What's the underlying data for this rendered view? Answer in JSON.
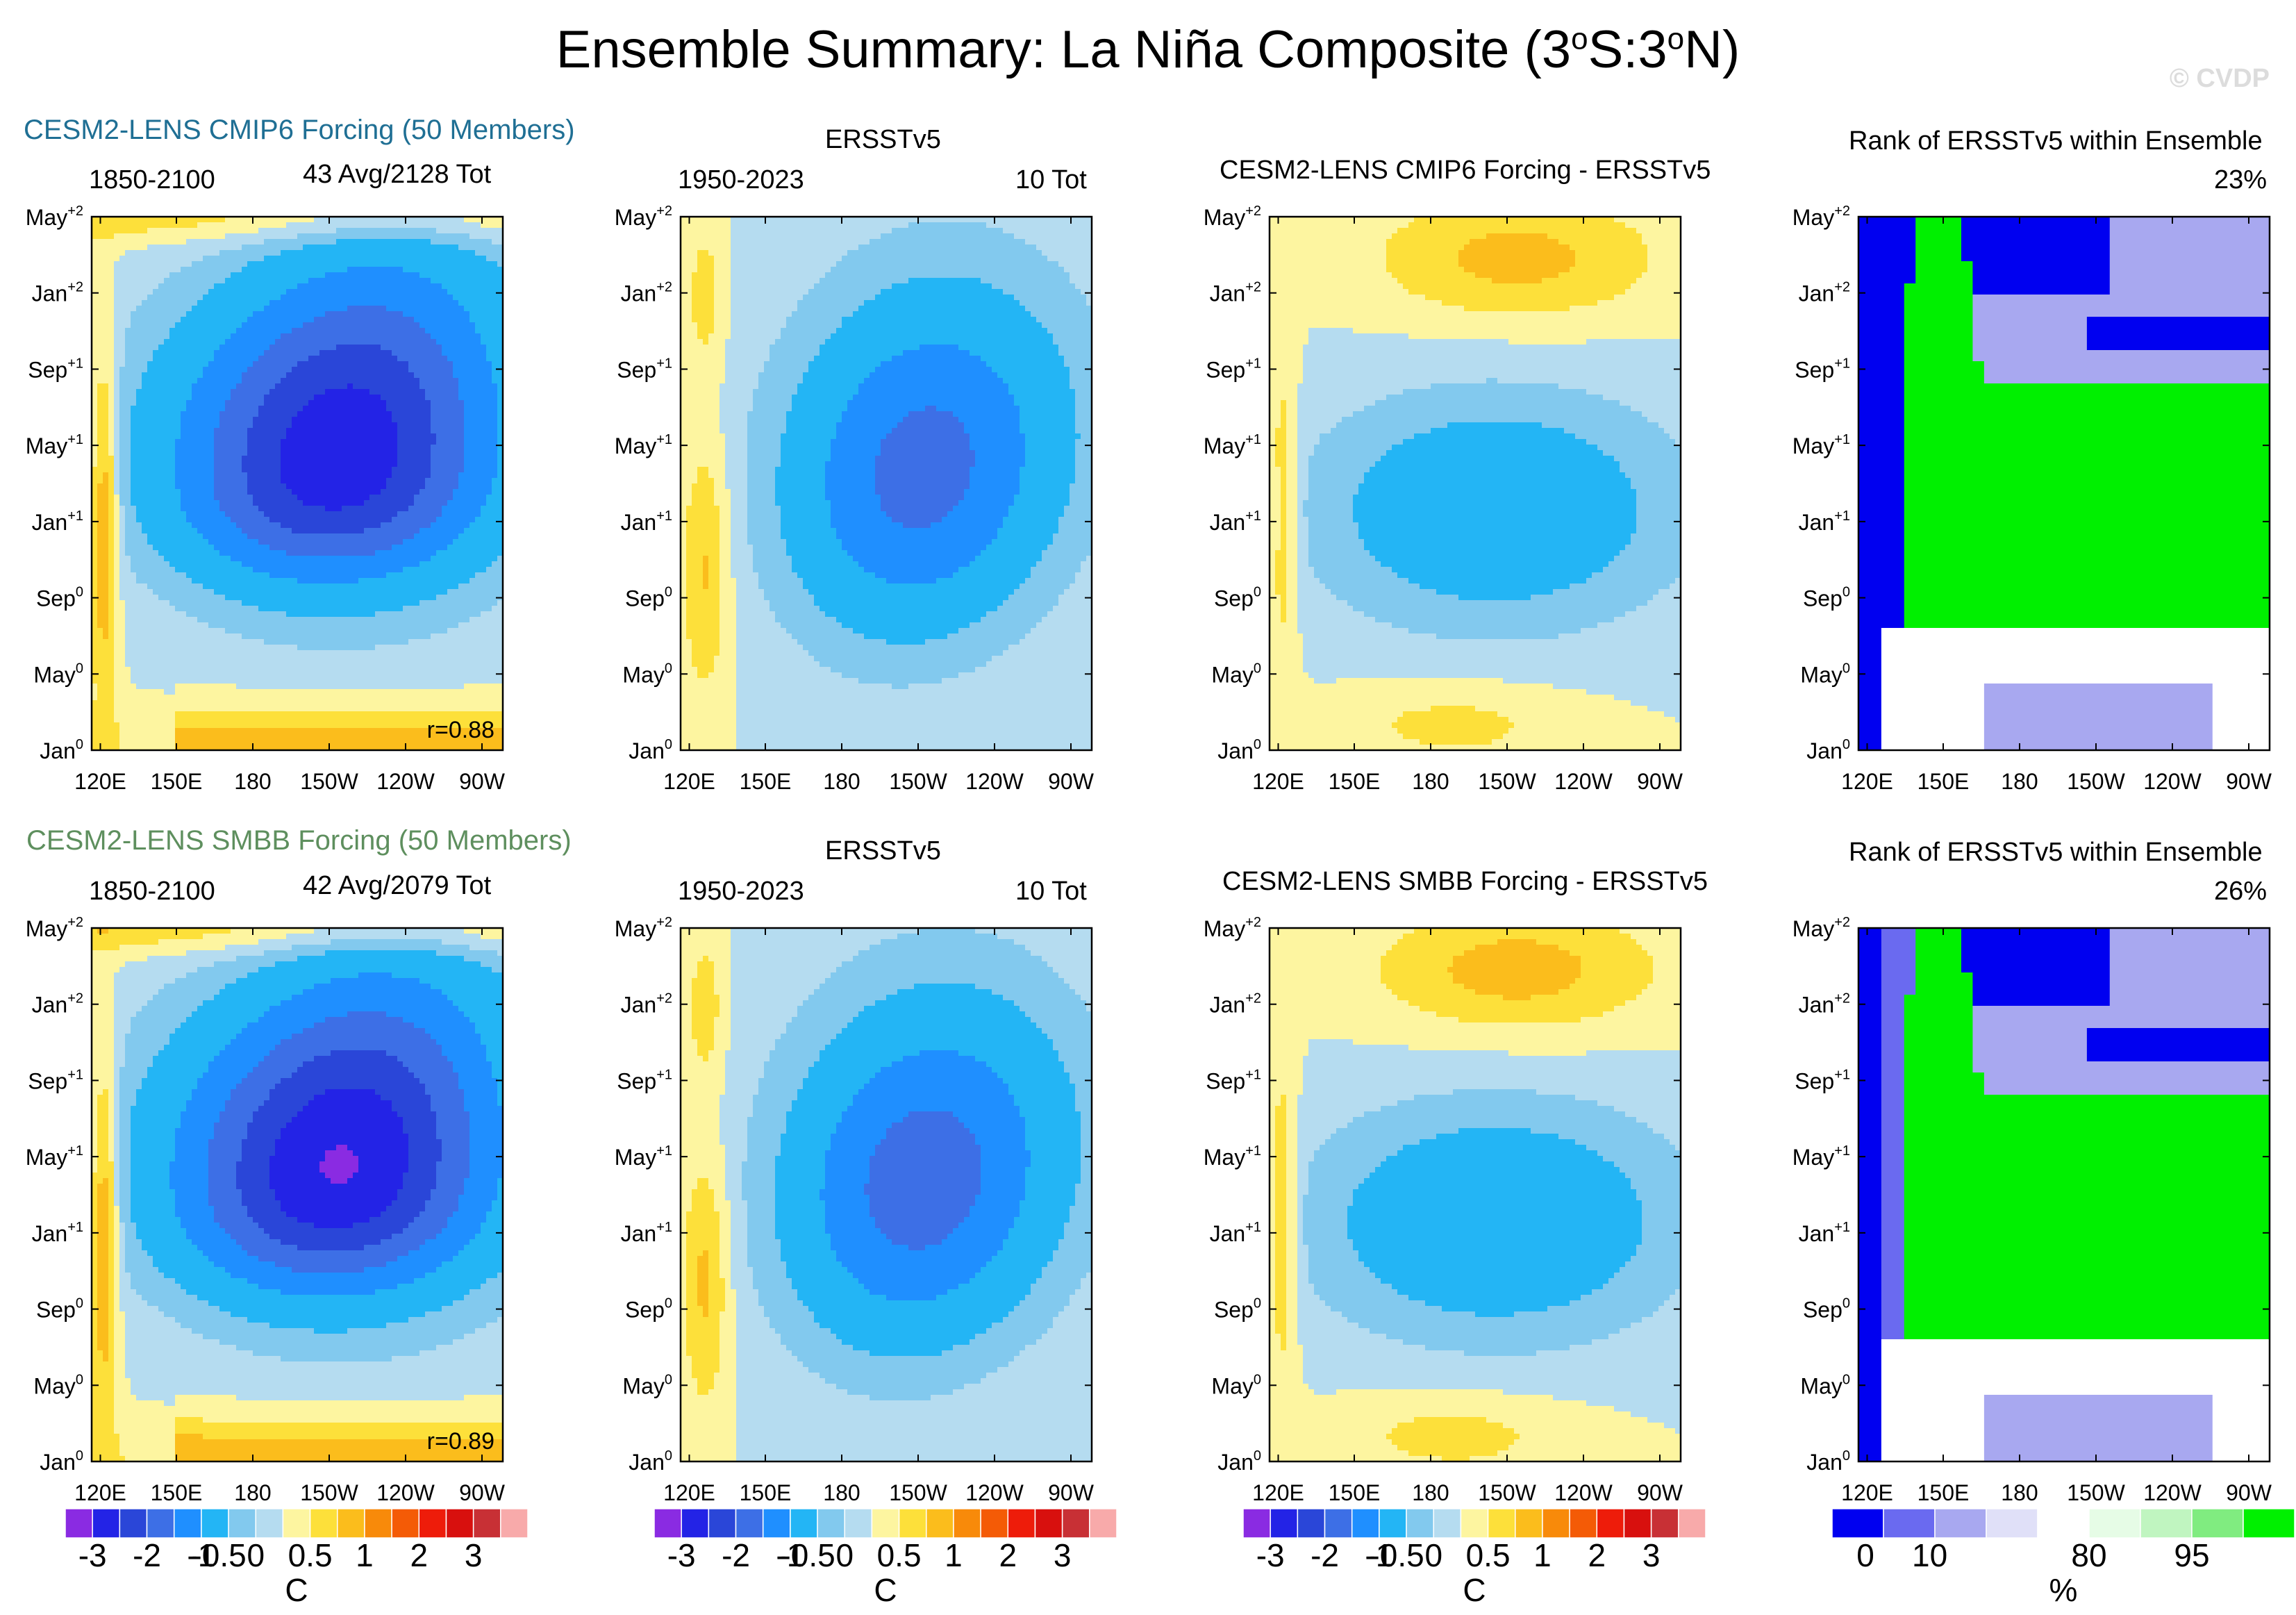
{
  "title": {
    "pre": "Ensemble Summary: La Niña Composite (3",
    "sup1": "o",
    "mid": "S:3",
    "sup2": "o",
    "post": "N)"
  },
  "watermark": "© CVDP",
  "colors": {
    "sst": [
      "#8a2be2",
      "#2323e6",
      "#2a46d8",
      "#3d6fe6",
      "#1f8fff",
      "#23b5f5",
      "#82c9ee",
      "#b5dcf0",
      "#fdf5a0",
      "#fde03a",
      "#fbbd1c",
      "#f88a0a",
      "#f45b06",
      "#ee1c0a",
      "#d8100e",
      "#c83035",
      "#f8aaaa"
    ],
    "rank": [
      "#0000f0",
      "#6a6af0",
      "#a8a8f0",
      "#e0e0f8",
      "#ffffff",
      "#e6fce6",
      "#c0f5c0",
      "#80ec80",
      "#00f000"
    ]
  },
  "rows": [
    {
      "label": "CESM2-LENS CMIP6 Forcing (50 Members)",
      "label_color": "#1f6f94",
      "model": {
        "period": "1850-2100",
        "stats": "43 Avg/2128 Tot",
        "corr": "r=0.88"
      },
      "obs": {
        "title": "ERSSTv5",
        "period": "1950-2023",
        "stats": "10 Tot"
      },
      "diff": {
        "title": "CESM2-LENS CMIP6 Forcing - ERSSTv5"
      },
      "rank": {
        "title": "Rank of ERSSTv5 within Ensemble",
        "pct": "23%"
      }
    },
    {
      "label": "CESM2-LENS SMBB Forcing (50 Members)",
      "label_color": "#5e8f5e",
      "model": {
        "period": "1850-2100",
        "stats": "42 Avg/2079 Tot",
        "corr": "r=0.89"
      },
      "obs": {
        "title": "ERSSTv5",
        "period": "1950-2023",
        "stats": "10 Tot"
      },
      "diff": {
        "title": "CESM2-LENS SMBB Forcing - ERSSTv5"
      },
      "rank": {
        "title": "Rank of ERSSTv5 within Ensemble",
        "pct": "26%"
      }
    }
  ],
  "axes": {
    "x_ticks": [
      "120E",
      "150E",
      "180",
      "150W",
      "120W",
      "90W"
    ],
    "y_ticks": [
      {
        "base": "Jan",
        "sup": "0"
      },
      {
        "base": "May",
        "sup": "0"
      },
      {
        "base": "Sep",
        "sup": "0"
      },
      {
        "base": "Jan",
        "sup": "+1"
      },
      {
        "base": "May",
        "sup": "+1"
      },
      {
        "base": "Sep",
        "sup": "+1"
      },
      {
        "base": "Jan",
        "sup": "+2"
      },
      {
        "base": "May",
        "sup": "+2"
      }
    ]
  },
  "colorbars": {
    "sst": {
      "labels": [
        "-3",
        "-2",
        "-1",
        "-0.5",
        "0",
        "0.5",
        "1",
        "2",
        "3"
      ],
      "unit": "C"
    },
    "rank": {
      "labels": [
        "0",
        "10",
        "80",
        "95"
      ],
      "unit": "%"
    }
  }
}
